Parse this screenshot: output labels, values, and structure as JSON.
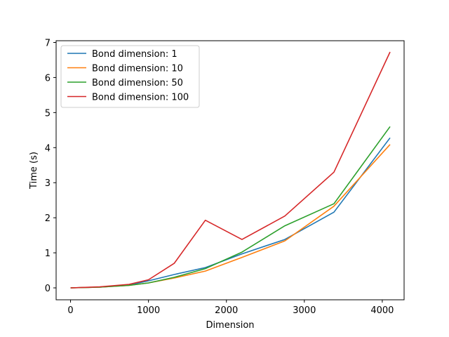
{
  "chart_data": {
    "type": "line",
    "title": "",
    "xlabel": "Dimension",
    "ylabel": "Time (s)",
    "xlim": [
      -185,
      4280
    ],
    "ylim": [
      -0.34,
      7.05
    ],
    "xticks": [
      0,
      1000,
      2000,
      3000,
      4000
    ],
    "yticks": [
      0,
      1,
      2,
      3,
      4,
      5,
      6,
      7
    ],
    "grid": false,
    "legend_position": "top-left",
    "series": [
      {
        "name": "Bond dimension: 1",
        "color": "#1f77b4",
        "x": [
          0,
          375,
          750,
          1000,
          1330,
          1730,
          2200,
          2750,
          3380,
          4100
        ],
        "y": [
          0.0,
          0.02,
          0.08,
          0.2,
          0.38,
          0.58,
          0.97,
          1.38,
          2.16,
          4.28
        ]
      },
      {
        "name": "Bond dimension: 10",
        "color": "#ff7f0e",
        "x": [
          0,
          375,
          750,
          1000,
          1330,
          1730,
          2200,
          2750,
          3380,
          4100
        ],
        "y": [
          0.0,
          0.02,
          0.07,
          0.14,
          0.28,
          0.48,
          0.87,
          1.34,
          2.33,
          4.09
        ]
      },
      {
        "name": "Bond dimension: 50",
        "color": "#2ca02c",
        "x": [
          0,
          375,
          750,
          1000,
          1330,
          1730,
          2200,
          2750,
          3380,
          4100
        ],
        "y": [
          0.0,
          0.02,
          0.07,
          0.14,
          0.3,
          0.55,
          1.02,
          1.77,
          2.4,
          4.6
        ]
      },
      {
        "name": "Bond dimension: 100",
        "color": "#d62728",
        "x": [
          0,
          375,
          750,
          1000,
          1330,
          1730,
          2200,
          2750,
          3380,
          4100
        ],
        "y": [
          0.0,
          0.03,
          0.1,
          0.23,
          0.7,
          1.93,
          1.38,
          2.05,
          3.3,
          6.73
        ]
      }
    ]
  }
}
